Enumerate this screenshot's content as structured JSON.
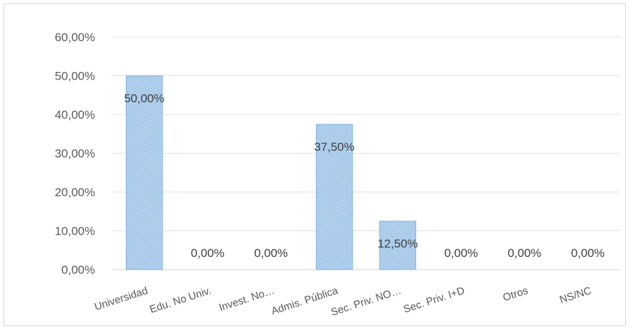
{
  "chart_data": {
    "type": "bar",
    "categories": [
      "Universidad",
      "Edu. No Univ.",
      "Invest. No…",
      "Admis. Pública",
      "Sec. Priv. NO…",
      "Sec. Priv. I+D",
      "Otros",
      "NS/NC"
    ],
    "values": [
      50.0,
      0.0,
      0.0,
      37.5,
      12.5,
      0.0,
      0.0,
      0.0
    ],
    "data_labels": [
      "50,00%",
      "0,00%",
      "0,00%",
      "37,50%",
      "12,50%",
      "0,00%",
      "0,00%",
      "0,00%"
    ],
    "y_ticks": [
      "0,00%",
      "10,00%",
      "20,00%",
      "30,00%",
      "40,00%",
      "50,00%",
      "60,00%"
    ],
    "ylim": [
      0,
      60
    ],
    "grid": true,
    "legend": "none",
    "bar_color": "#9dc3e6",
    "bar_edge_color": "#5b9bd5",
    "grid_color": "#e0e0e0",
    "label_color": "#404040"
  }
}
